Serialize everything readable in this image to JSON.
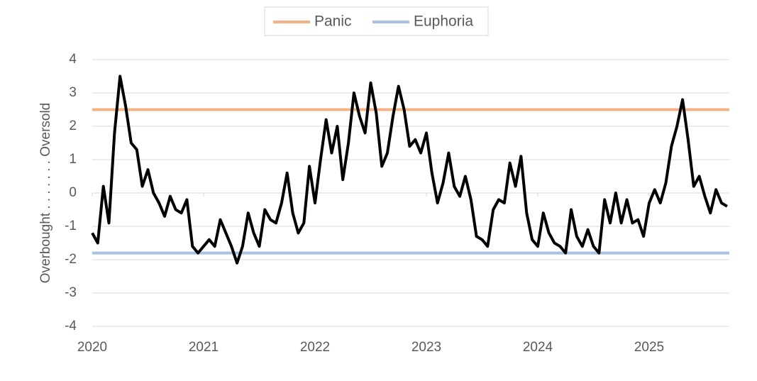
{
  "chart_data": {
    "type": "line",
    "ylabel": "Overbought . . . . . . . Oversold",
    "xlim": [
      2020,
      2025.72
    ],
    "xticks": [
      2020,
      2021,
      2022,
      2023,
      2024,
      2025
    ],
    "ylim": [
      -4,
      4
    ],
    "yticks": [
      -4,
      -3,
      -2,
      -1,
      0,
      1,
      2,
      3,
      4
    ],
    "grid": true,
    "hlines": [
      {
        "name": "Panic",
        "value": 2.5,
        "color": "#f4b183"
      },
      {
        "name": "Euphoria",
        "value": -1.8,
        "color": "#a9c1e3"
      }
    ],
    "x": [
      2020.0,
      2020.05,
      2020.1,
      2020.15,
      2020.2,
      2020.25,
      2020.3,
      2020.35,
      2020.4,
      2020.45,
      2020.5,
      2020.55,
      2020.6,
      2020.65,
      2020.7,
      2020.75,
      2020.8,
      2020.85,
      2020.9,
      2020.95,
      2021.0,
      2021.05,
      2021.1,
      2021.15,
      2021.2,
      2021.25,
      2021.3,
      2021.35,
      2021.4,
      2021.45,
      2021.5,
      2021.55,
      2021.6,
      2021.65,
      2021.7,
      2021.75,
      2021.8,
      2021.85,
      2021.9,
      2021.95,
      2022.0,
      2022.05,
      2022.1,
      2022.15,
      2022.2,
      2022.25,
      2022.3,
      2022.35,
      2022.4,
      2022.45,
      2022.5,
      2022.55,
      2022.6,
      2022.65,
      2022.7,
      2022.75,
      2022.8,
      2022.85,
      2022.9,
      2022.95,
      2023.0,
      2023.05,
      2023.1,
      2023.15,
      2023.2,
      2023.25,
      2023.3,
      2023.35,
      2023.4,
      2023.45,
      2023.5,
      2023.55,
      2023.6,
      2023.65,
      2023.7,
      2023.75,
      2023.8,
      2023.85,
      2023.9,
      2023.95,
      2024.0,
      2024.05,
      2024.1,
      2024.15,
      2024.2,
      2024.25,
      2024.3,
      2024.35,
      2024.4,
      2024.45,
      2024.5,
      2024.55,
      2024.6,
      2024.65,
      2024.7,
      2024.75,
      2024.8,
      2024.85,
      2024.9,
      2024.95,
      2025.0,
      2025.05,
      2025.1,
      2025.15,
      2025.2,
      2025.25,
      2025.3,
      2025.35,
      2025.4,
      2025.45,
      2025.5,
      2025.55,
      2025.6,
      2025.65,
      2025.7
    ],
    "series": [
      {
        "color": "#000000",
        "values": [
          -1.2,
          -1.5,
          0.2,
          -0.9,
          1.8,
          3.5,
          2.6,
          1.5,
          1.3,
          0.2,
          0.7,
          0.0,
          -0.3,
          -0.7,
          -0.1,
          -0.5,
          -0.6,
          -0.2,
          -1.6,
          -1.8,
          -1.6,
          -1.4,
          -1.6,
          -0.8,
          -1.2,
          -1.6,
          -2.1,
          -1.6,
          -0.6,
          -1.2,
          -1.6,
          -0.5,
          -0.8,
          -0.9,
          -0.3,
          0.6,
          -0.6,
          -1.2,
          -0.9,
          0.8,
          -0.3,
          1.0,
          2.2,
          1.2,
          2.0,
          0.4,
          1.5,
          3.0,
          2.3,
          1.8,
          3.3,
          2.4,
          0.8,
          1.2,
          2.3,
          3.2,
          2.5,
          1.4,
          1.6,
          1.2,
          1.8,
          0.6,
          -0.3,
          0.3,
          1.2,
          0.2,
          -0.1,
          0.5,
          -0.2,
          -1.3,
          -1.4,
          -1.6,
          -0.5,
          -0.2,
          -0.3,
          0.9,
          0.2,
          1.1,
          -0.6,
          -1.4,
          -1.6,
          -0.6,
          -1.2,
          -1.5,
          -1.6,
          -1.8,
          -0.5,
          -1.3,
          -1.6,
          -1.1,
          -1.6,
          -1.8,
          -0.2,
          -0.9,
          0.0,
          -0.9,
          -0.2,
          -0.9,
          -0.8,
          -1.3,
          -0.3,
          0.1,
          -0.3,
          0.3,
          1.4,
          2.0,
          2.8,
          1.6,
          0.2,
          0.5,
          -0.1,
          -0.6,
          0.1,
          -0.3,
          -0.4
        ]
      }
    ]
  }
}
